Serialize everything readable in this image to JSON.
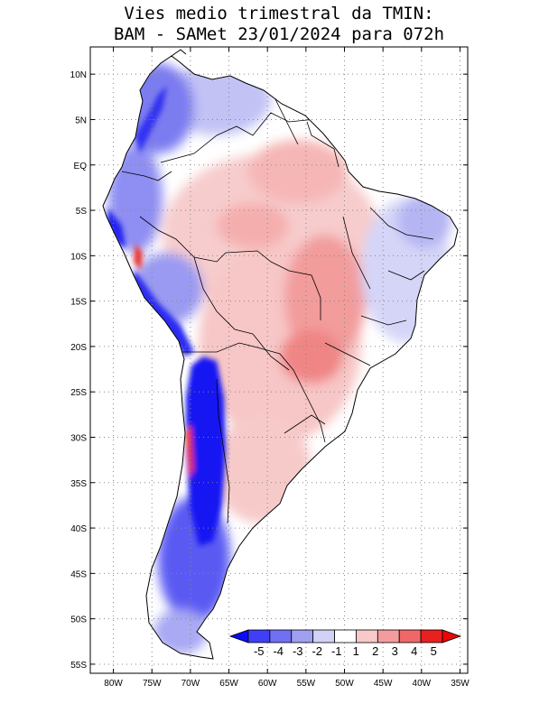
{
  "title": {
    "line1": "Vies medio trimestral da TMIN:",
    "line2": "BAM - SAMet 23/01/2024  para 072h"
  },
  "map": {
    "lon_range": [
      -83,
      -34
    ],
    "lat_range": [
      -56,
      13
    ],
    "grid": true,
    "lat_ticks": [
      "10N",
      "5N",
      "EQ",
      "5S",
      "10S",
      "15S",
      "20S",
      "25S",
      "30S",
      "35S",
      "40S",
      "45S",
      "50S",
      "55S"
    ],
    "lon_ticks": [
      "80W",
      "75W",
      "70W",
      "65W",
      "60W",
      "55W",
      "50W",
      "45W",
      "40W",
      "35W"
    ]
  },
  "colorbar": {
    "labels": [
      "-5",
      "-4",
      "-3",
      "-2",
      "-1",
      "1",
      "2",
      "3",
      "4",
      "5"
    ],
    "colors": [
      "#0b0bf5",
      "#3f3ff5",
      "#7070f2",
      "#a0a0f0",
      "#d2d2f7",
      "#ffffff",
      "#f7c9c9",
      "#f49c9c",
      "#f06767",
      "#e82020",
      "#e80808"
    ]
  }
}
